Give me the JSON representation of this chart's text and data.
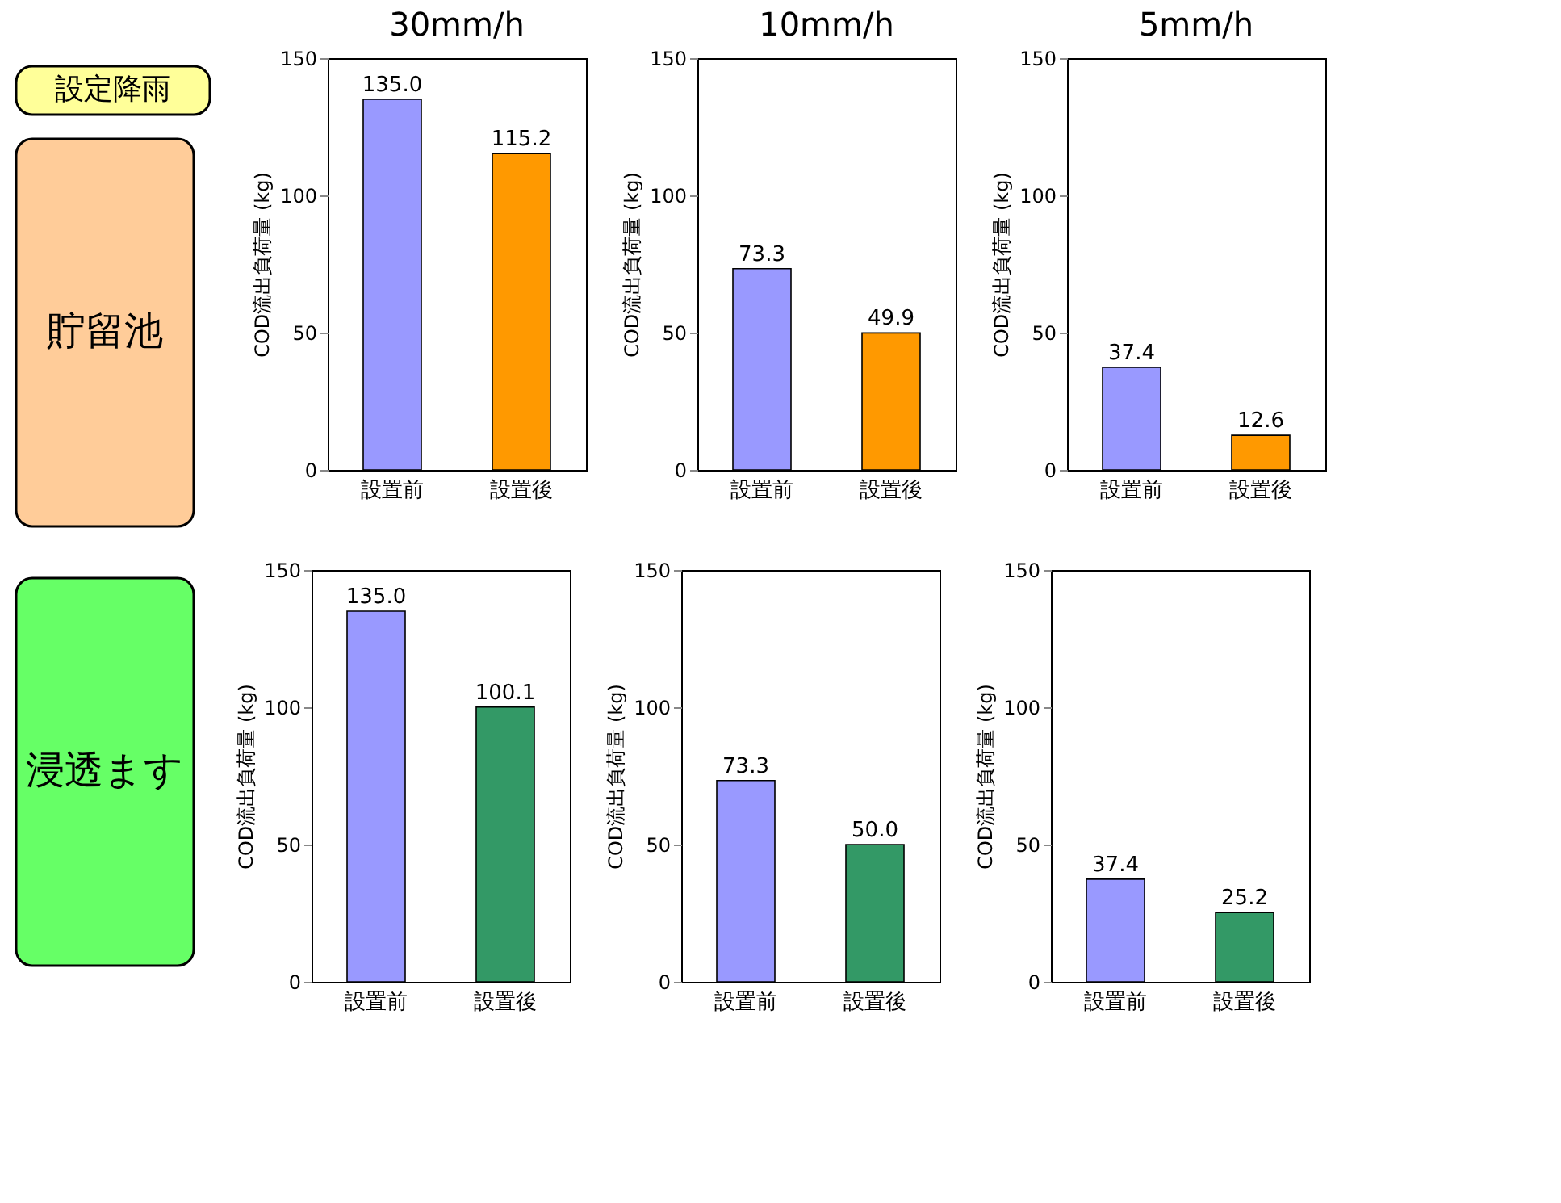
{
  "chart_data": [
    {
      "type": "other",
      "annotations": [
        "設定降雨"
      ]
    },
    {
      "type": "bar",
      "title": "30mm/h",
      "ylabel": "COD流出負荷量 (kg)",
      "categories": [
        "設置前",
        "設置後"
      ],
      "values": [
        135.0,
        115.2
      ],
      "value_labels": [
        "135.0",
        "115.2"
      ],
      "colors": [
        "#9999ff",
        "#ff9900"
      ],
      "ylim": [
        0,
        150
      ],
      "yticks": [
        0,
        50,
        100,
        150
      ],
      "grid": false
    },
    {
      "type": "bar",
      "title": "10mm/h",
      "ylabel": "COD流出負荷量 (kg)",
      "categories": [
        "設置前",
        "設置後"
      ],
      "values": [
        73.3,
        49.9
      ],
      "value_labels": [
        "73.3",
        "49.9"
      ],
      "colors": [
        "#9999ff",
        "#ff9900"
      ],
      "ylim": [
        0,
        150
      ],
      "yticks": [
        0,
        50,
        100,
        150
      ],
      "grid": false
    },
    {
      "type": "bar",
      "title": "5mm/h",
      "ylabel": "COD流出負荷量 (kg)",
      "categories": [
        "設置前",
        "設置後"
      ],
      "values": [
        37.4,
        12.6
      ],
      "value_labels": [
        "37.4",
        "12.6"
      ],
      "colors": [
        "#9999ff",
        "#ff9900"
      ],
      "ylim": [
        0,
        150
      ],
      "yticks": [
        0,
        50,
        100,
        150
      ],
      "grid": false
    },
    {
      "type": "other",
      "annotations": [
        "貯留池"
      ]
    },
    {
      "type": "other",
      "annotations": [
        "浸透ます"
      ]
    },
    {
      "type": "bar",
      "ylabel": "COD流出負荷量 (kg)",
      "categories": [
        "設置前",
        "設置後"
      ],
      "values": [
        135.0,
        100.1
      ],
      "value_labels": [
        "135.0",
        "100.1"
      ],
      "colors": [
        "#9999ff",
        "#339966"
      ],
      "ylim": [
        0,
        150
      ],
      "yticks": [
        0,
        50,
        100,
        150
      ],
      "grid": false
    },
    {
      "type": "bar",
      "ylabel": "COD流出負荷量 (kg)",
      "categories": [
        "設置前",
        "設置後"
      ],
      "values": [
        73.3,
        50.0
      ],
      "value_labels": [
        "73.3",
        "50.0"
      ],
      "colors": [
        "#9999ff",
        "#339966"
      ],
      "ylim": [
        0,
        150
      ],
      "yticks": [
        0,
        50,
        100,
        150
      ],
      "grid": false
    },
    {
      "type": "bar",
      "ylabel": "COD流出負荷量 (kg)",
      "categories": [
        "設置前",
        "設置後"
      ],
      "values": [
        37.4,
        25.2
      ],
      "value_labels": [
        "37.4",
        "25.2"
      ],
      "colors": [
        "#9999ff",
        "#339966"
      ],
      "ylim": [
        0,
        150
      ],
      "yticks": [
        0,
        50,
        100,
        150
      ],
      "grid": false
    }
  ]
}
